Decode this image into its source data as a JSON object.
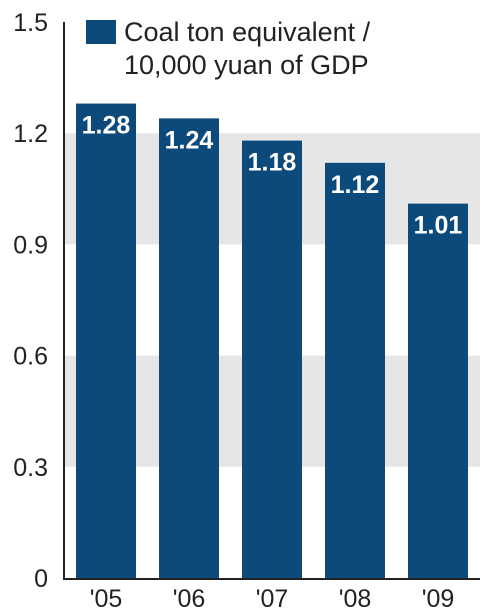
{
  "chart_data": {
    "type": "bar",
    "categories": [
      "'05",
      "'06",
      "'07",
      "'08",
      "'09"
    ],
    "values": [
      1.28,
      1.24,
      1.18,
      1.12,
      1.01
    ],
    "value_labels": [
      "1.28",
      "1.24",
      "1.18",
      "1.12",
      "1.01"
    ],
    "ylim": [
      0,
      1.5
    ],
    "yticks": [
      0,
      0.3,
      0.6,
      0.9,
      1.2,
      1.5
    ],
    "ytick_labels": [
      "0",
      "0.3",
      "0.6",
      "0.9",
      "1.2",
      "1.5"
    ],
    "legend": {
      "line1": "Coal ton equivalent /",
      "line2": "10,000 yuan of GDP",
      "placement": "top-left"
    },
    "grid": "alternating bands",
    "colors": {
      "bar": "#0d4a7c",
      "band": "#e6e6e6",
      "text": "#222222",
      "label": "#ffffff"
    }
  }
}
